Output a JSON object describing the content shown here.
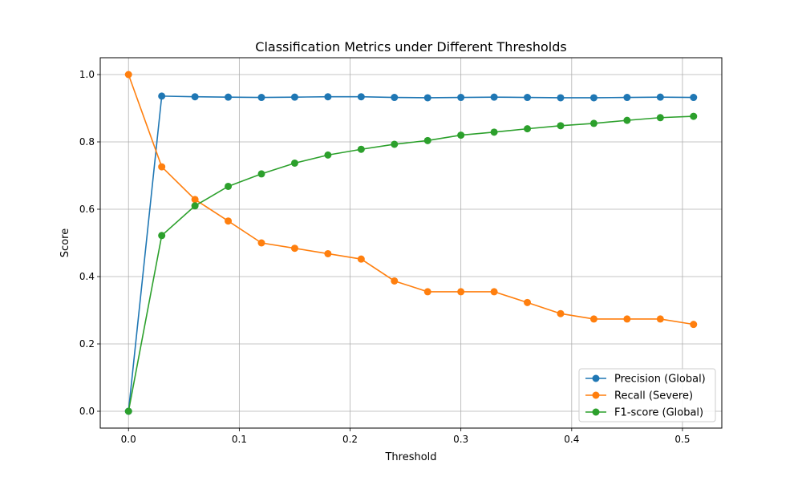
{
  "chart_data": {
    "type": "line",
    "title": "Classification Metrics under Different Thresholds",
    "xlabel": "Threshold",
    "ylabel": "Score",
    "xlim": [
      -0.0255,
      0.5355
    ],
    "ylim": [
      -0.05,
      1.05
    ],
    "xticks": [
      0.0,
      0.1,
      0.2,
      0.3,
      0.4,
      0.5
    ],
    "xtick_labels": [
      "0.0",
      "0.1",
      "0.2",
      "0.3",
      "0.4",
      "0.5"
    ],
    "yticks": [
      0.0,
      0.2,
      0.4,
      0.6,
      0.8,
      1.0
    ],
    "ytick_labels": [
      "0.0",
      "0.2",
      "0.4",
      "0.6",
      "0.8",
      "1.0"
    ],
    "grid": true,
    "legend_position": "bottom-right",
    "x": [
      0.0,
      0.03,
      0.06,
      0.09,
      0.12,
      0.15,
      0.18,
      0.21,
      0.24,
      0.27,
      0.3,
      0.33,
      0.36,
      0.39,
      0.42,
      0.45,
      0.48,
      0.51
    ],
    "series": [
      {
        "name": "Precision (Global)",
        "color": "#1f77b4",
        "values": [
          0.0,
          0.936,
          0.934,
          0.933,
          0.932,
          0.933,
          0.934,
          0.934,
          0.932,
          0.931,
          0.932,
          0.933,
          0.932,
          0.931,
          0.931,
          0.932,
          0.933,
          0.932
        ]
      },
      {
        "name": "Recall (Severe)",
        "color": "#ff7f0e",
        "values": [
          1.0,
          0.726,
          0.629,
          0.565,
          0.5,
          0.484,
          0.468,
          0.452,
          0.387,
          0.355,
          0.355,
          0.355,
          0.323,
          0.29,
          0.274,
          0.274,
          0.274,
          0.258
        ]
      },
      {
        "name": "F1-score (Global)",
        "color": "#2ca02c",
        "values": [
          0.0,
          0.522,
          0.61,
          0.668,
          0.705,
          0.737,
          0.761,
          0.778,
          0.793,
          0.804,
          0.82,
          0.829,
          0.839,
          0.848,
          0.855,
          0.864,
          0.872,
          0.876
        ]
      }
    ]
  }
}
